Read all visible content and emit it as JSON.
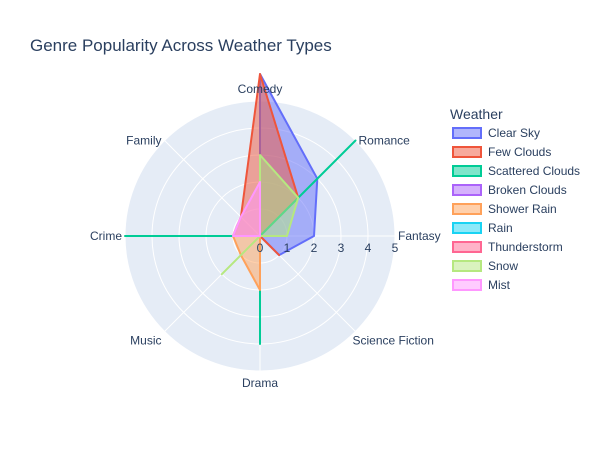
{
  "chart_data": {
    "type": "radar",
    "title": "Genre Popularity Across Weather Types",
    "axes": [
      "Comedy",
      "Romance",
      "Fantasy",
      "Science Fiction",
      "Drama",
      "Music",
      "Crime",
      "Family"
    ],
    "radial_range": [
      0,
      5
    ],
    "radial_ticks": [
      "0",
      "1",
      "2",
      "3",
      "4",
      "5"
    ],
    "legend_title": "Weather",
    "series": [
      {
        "name": "Clear Sky",
        "color": "#636efa",
        "values": [
          6,
          3,
          2,
          1,
          0,
          0,
          1,
          0
        ]
      },
      {
        "name": "Few Clouds",
        "color": "#ef553b",
        "values": [
          6,
          2,
          0,
          1,
          0,
          0,
          1,
          1
        ]
      },
      {
        "name": "Scattered Clouds",
        "color": "#00cc96",
        "values": [
          0,
          5,
          0,
          0,
          4,
          0,
          5,
          0
        ]
      },
      {
        "name": "Broken Clouds",
        "color": "#ab63fa",
        "values": [
          0,
          0,
          0,
          0,
          0,
          0,
          0,
          0
        ]
      },
      {
        "name": "Shower Rain",
        "color": "#ffa15a",
        "values": [
          0,
          0,
          0,
          0,
          2,
          1,
          1,
          0
        ]
      },
      {
        "name": "Rain",
        "color": "#19d3f3",
        "values": [
          0,
          0,
          0,
          0,
          0,
          0,
          0,
          0
        ]
      },
      {
        "name": "Thunderstorm",
        "color": "#ff6692",
        "values": [
          0,
          0,
          0,
          0,
          0,
          0,
          0,
          0
        ]
      },
      {
        "name": "Snow",
        "color": "#b6e880",
        "values": [
          3,
          2,
          1,
          0,
          0,
          2,
          0,
          0
        ]
      },
      {
        "name": "Mist",
        "color": "#ff97ff",
        "values": [
          2,
          0,
          0,
          0,
          0,
          0,
          1,
          1
        ]
      }
    ],
    "legend_placement": "right",
    "grid": true
  }
}
